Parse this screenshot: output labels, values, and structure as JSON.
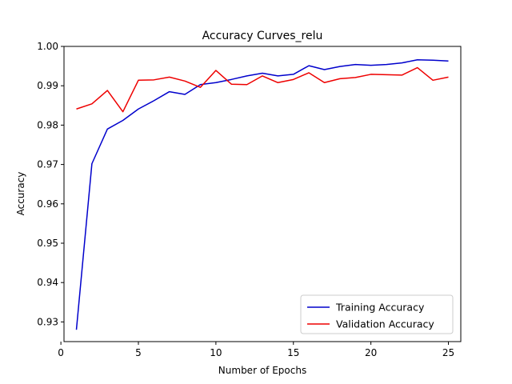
{
  "chart_data": {
    "type": "line",
    "title": "Accuracy Curves_relu",
    "xlabel": "Number of Epochs",
    "ylabel": "Accuracy",
    "xlim": [
      0.2,
      25.8
    ],
    "ylim": [
      0.925,
      1.0
    ],
    "x_ticks": [
      0,
      5,
      10,
      15,
      20,
      25
    ],
    "y_ticks": [
      0.93,
      0.94,
      0.95,
      0.96,
      0.97,
      0.98,
      0.99,
      1.0
    ],
    "x_tick_labels": [
      "0",
      "5",
      "10",
      "15",
      "20",
      "25"
    ],
    "y_tick_labels": [
      "0.93",
      "0.94",
      "0.95",
      "0.96",
      "0.97",
      "0.98",
      "0.99",
      "1.00"
    ],
    "grid": false,
    "legend_position": "lower-right",
    "x": [
      1,
      2,
      3,
      4,
      5,
      6,
      7,
      8,
      9,
      10,
      11,
      12,
      13,
      14,
      15,
      16,
      17,
      18,
      19,
      20,
      21,
      22,
      23,
      24,
      25
    ],
    "series": [
      {
        "name": "Training Accuracy",
        "color": "#0000cc",
        "values": [
          0.928,
          0.9702,
          0.979,
          0.9812,
          0.9841,
          0.9862,
          0.9885,
          0.9878,
          0.9903,
          0.9908,
          0.9916,
          0.9925,
          0.9932,
          0.9925,
          0.9929,
          0.9951,
          0.9941,
          0.9949,
          0.9954,
          0.9952,
          0.9954,
          0.9958,
          0.9966,
          0.9965,
          0.9963
        ]
      },
      {
        "name": "Validation Accuracy",
        "color": "#ee0000",
        "values": [
          0.9841,
          0.9854,
          0.9888,
          0.9834,
          0.9914,
          0.9915,
          0.9922,
          0.9912,
          0.9896,
          0.9939,
          0.9904,
          0.9903,
          0.9925,
          0.9908,
          0.9916,
          0.9933,
          0.9908,
          0.9918,
          0.9921,
          0.9929,
          0.9928,
          0.9927,
          0.9946,
          0.9914,
          0.9922
        ]
      }
    ]
  }
}
